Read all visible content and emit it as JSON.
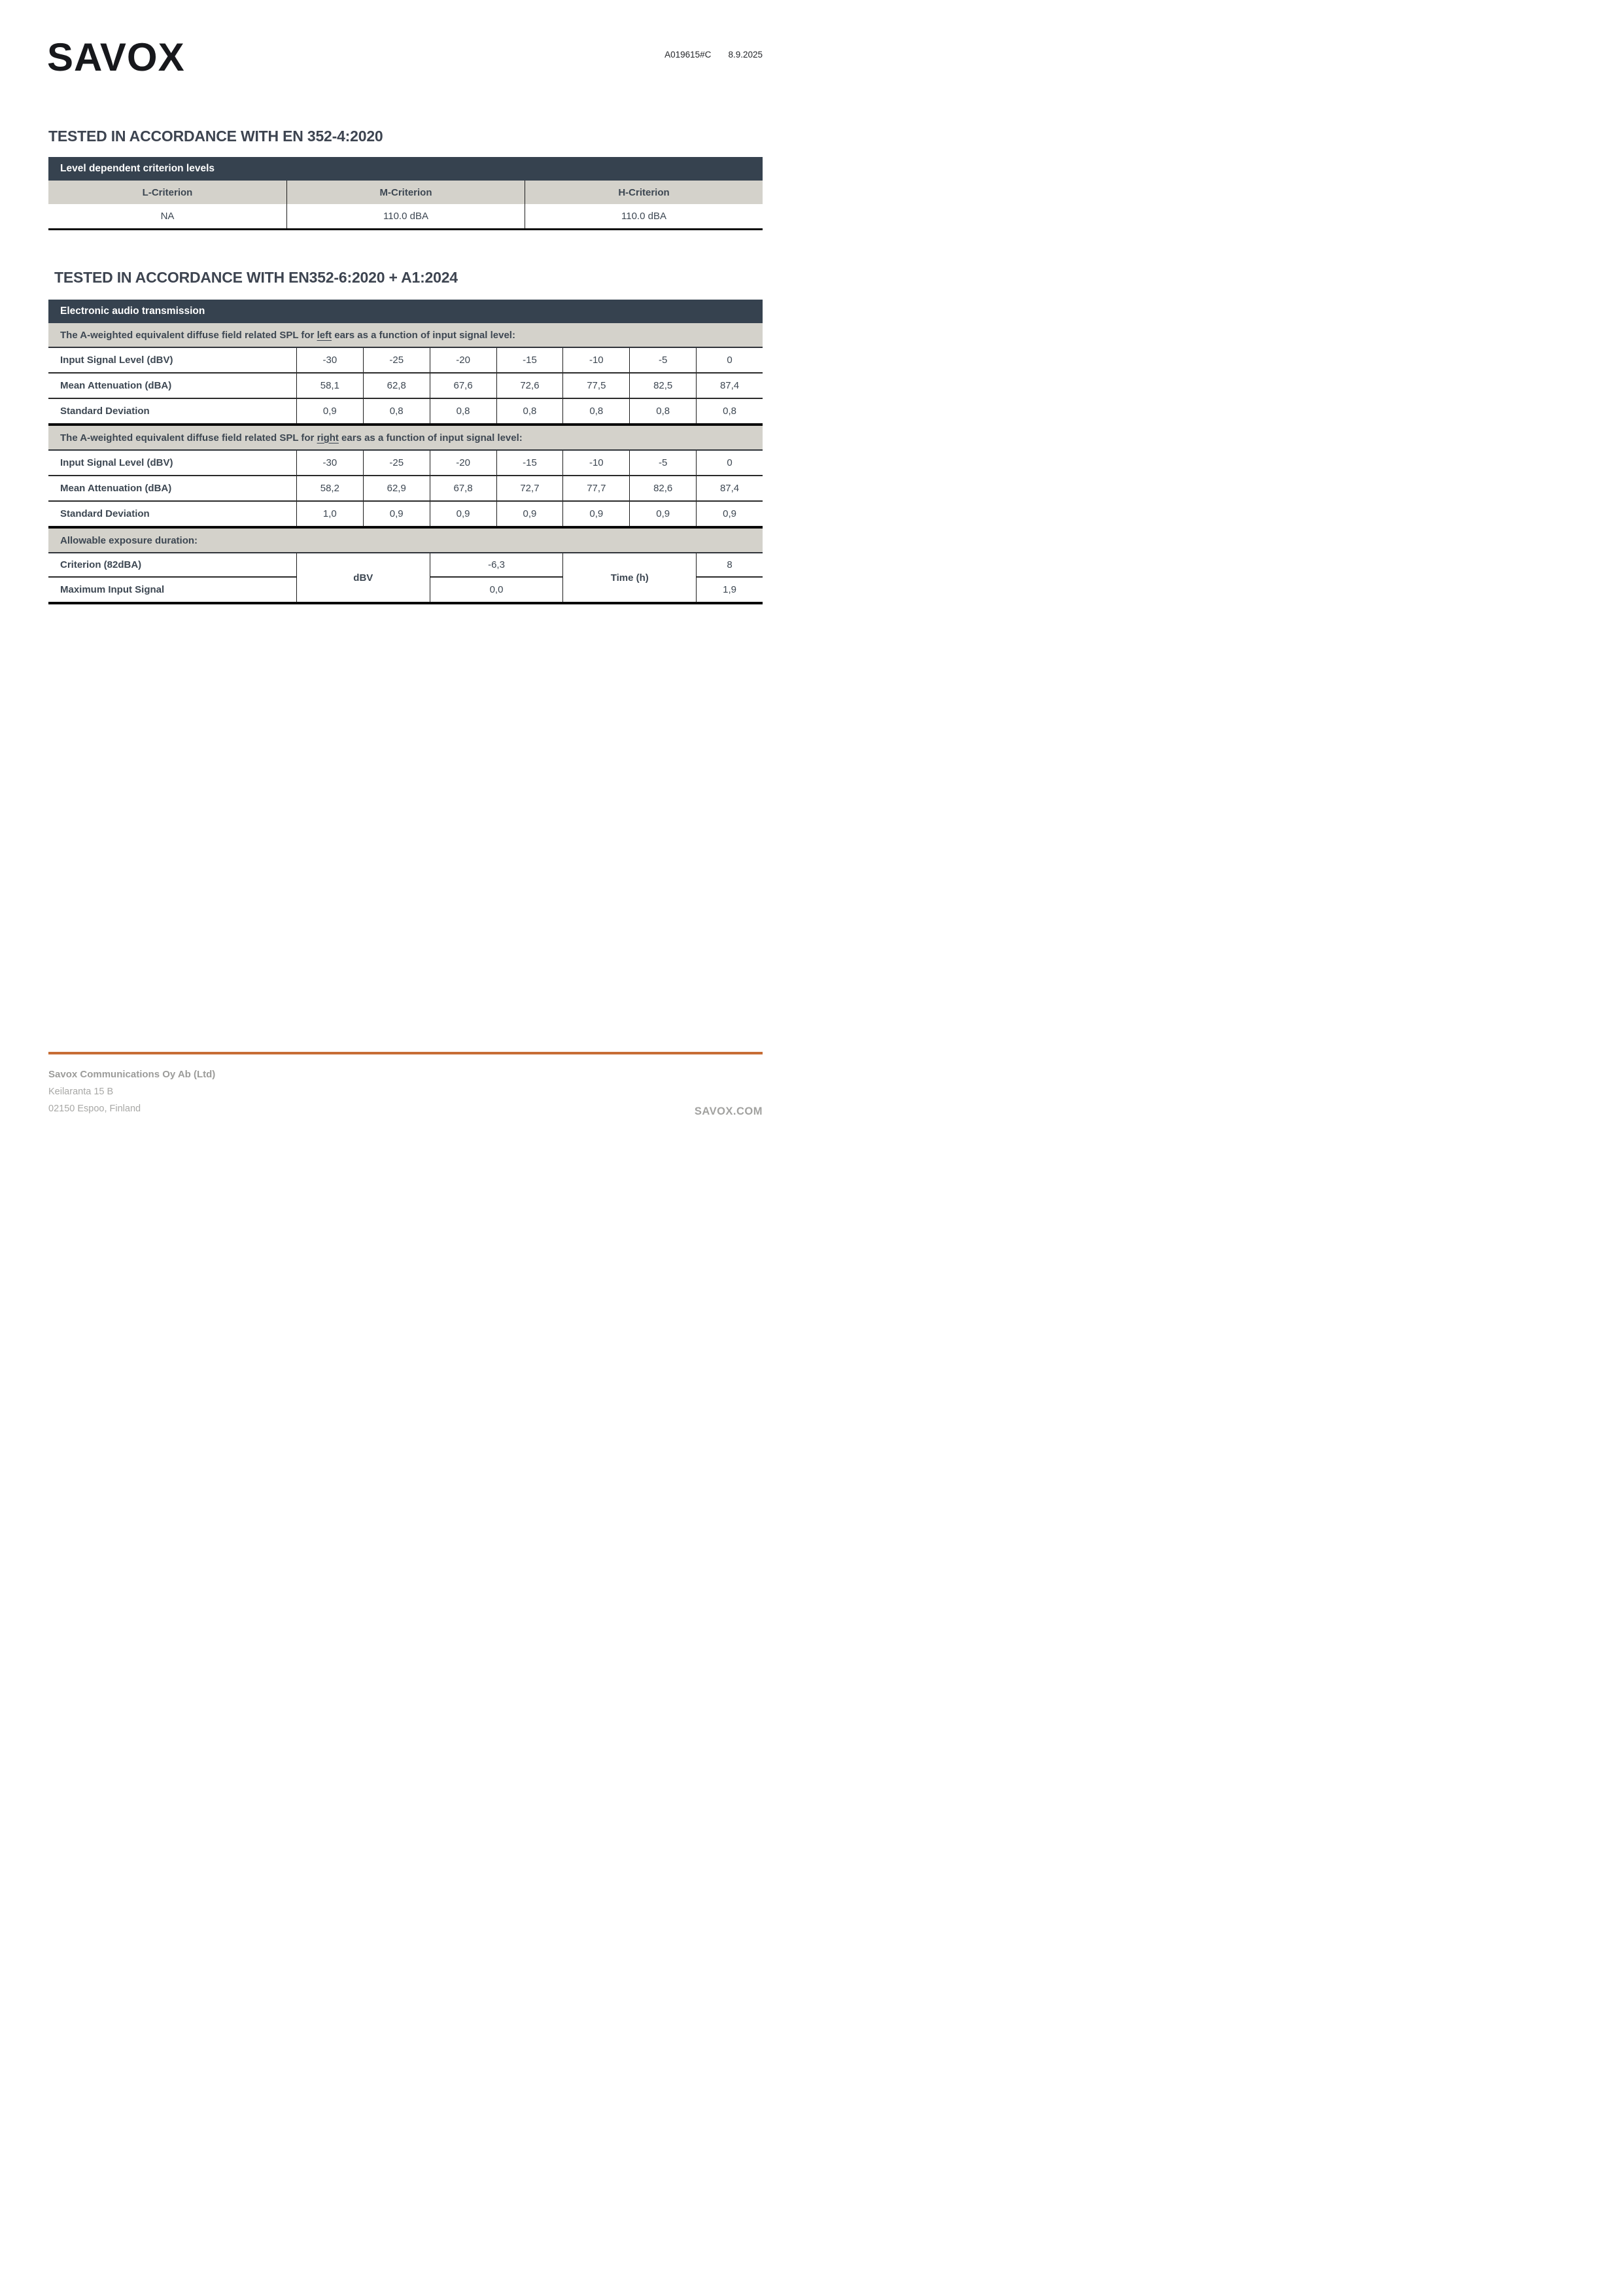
{
  "header": {
    "logo": "SAVOX",
    "doc_ref": "A019615#C",
    "date": "8.9.2025"
  },
  "section1": {
    "title": "TESTED IN ACCORDANCE WITH EN 352-4:2020",
    "table": {
      "header": "Level dependent criterion levels",
      "columns": [
        "L-Criterion",
        "M-Criterion",
        "H-Criterion"
      ],
      "values": [
        "NA",
        "110.0 dBA",
        "110.0 dBA"
      ]
    }
  },
  "section2": {
    "title": "TESTED IN ACCORDANCE WITH EN352-6:2020 + A1:2024",
    "table": {
      "header": "Electronic audio transmission",
      "ear_sections": [
        {
          "id": "left-ears",
          "caption_prefix": "The A-weighted equivalent diffuse field related SPL for ",
          "caption_underlined": "left",
          "caption_suffix": " ears as a function of input signal level:",
          "rows": [
            {
              "label": "Input Signal Level (dBV)",
              "values": [
                "-30",
                "-25",
                "-20",
                "-15",
                "-10",
                "-5",
                "0"
              ]
            },
            {
              "label": "Mean Attenuation (dBA)",
              "values": [
                "58,1",
                "62,8",
                "67,6",
                "72,6",
                "77,5",
                "82,5",
                "87,4"
              ]
            },
            {
              "label": "Standard Deviation",
              "values": [
                "0,9",
                "0,8",
                "0,8",
                "0,8",
                "0,8",
                "0,8",
                "0,8"
              ]
            }
          ]
        },
        {
          "id": "right-ears",
          "caption_prefix": "The A-weighted equivalent diffuse field related SPL for ",
          "caption_underlined": "right",
          "caption_suffix": " ears as a function of input signal level:",
          "rows": [
            {
              "label": "Input Signal Level (dBV)",
              "values": [
                "-30",
                "-25",
                "-20",
                "-15",
                "-10",
                "-5",
                "0"
              ]
            },
            {
              "label": "Mean Attenuation (dBA)",
              "values": [
                "58,2",
                "62,9",
                "67,8",
                "72,7",
                "77,7",
                "82,6",
                "87,4"
              ]
            },
            {
              "label": "Standard Deviation",
              "values": [
                "1,0",
                "0,9",
                "0,9",
                "0,9",
                "0,9",
                "0,9",
                "0,9"
              ]
            }
          ]
        }
      ],
      "exposure": {
        "caption": "Allowable exposure duration:",
        "unit_label": "dBV",
        "time_label": "Time (h)",
        "rows": [
          {
            "label": "Criterion (82dBA)",
            "value": "-6,3",
            "time": "8"
          },
          {
            "label": "Maximum Input Signal",
            "value": "0,0",
            "time": "1,9"
          }
        ]
      }
    }
  },
  "footer": {
    "company": "Savox Communications Oy Ab (Ltd)",
    "address1": "Keilaranta 15 B",
    "address2": "02150 Espoo, Finland",
    "website": "SAVOX.COM"
  },
  "colors": {
    "accent_orange": "#c76d35",
    "table_header_bg": "#36424f",
    "subheader_bg": "#d4d2cb",
    "text_dark": "#3d4752",
    "footer_gray": "#a2a2a0"
  }
}
